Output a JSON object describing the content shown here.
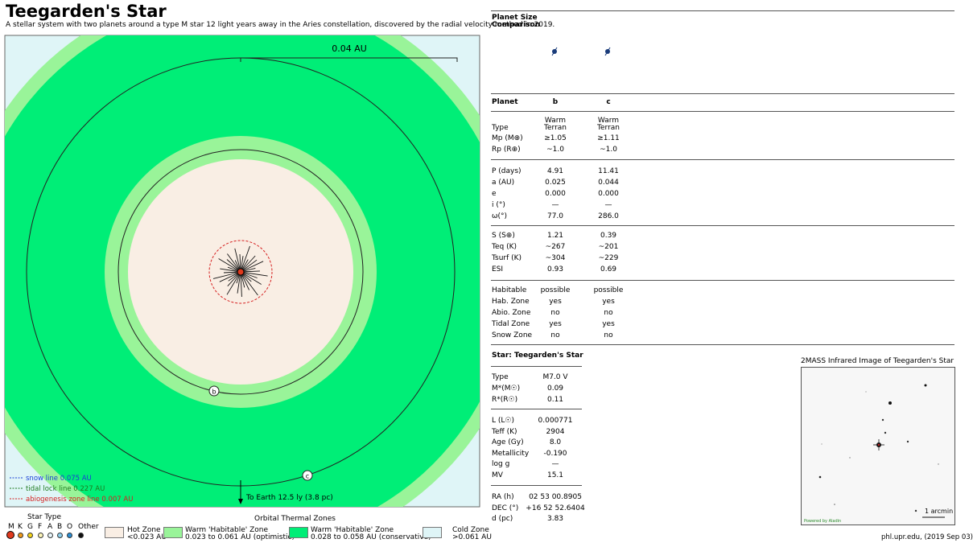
{
  "header": {
    "title": "Teegarden's Star",
    "subtitle": "A stellar system with two planets around a type M star 12 light years away in the Aries constellation, discovered by the radial velocity method in 2019."
  },
  "diagram": {
    "scale_label": "0.04 AU",
    "earth_direction": "To Earth 12.5 ly (3.8 pc)",
    "planet_labels": [
      "b",
      "c"
    ],
    "lines": [
      {
        "label": "snow line 0.075 AU",
        "color": "#1a3fd6"
      },
      {
        "label": "tidal lock line 0.227 AU",
        "color": "#1f7a1f"
      },
      {
        "label": "abiogenesis zone line 0.007 AU",
        "color": "#d62020"
      }
    ],
    "zone_colors": {
      "cold": "#dff5f7",
      "optimistic": "#99f499",
      "conservative": "#00ee77",
      "hot": "#f9eee4"
    }
  },
  "star_type_legend": {
    "title": "Star Type",
    "types": [
      "M",
      "K",
      "G",
      "F",
      "A",
      "B",
      "O",
      "Other"
    ],
    "colors": [
      "#e03a1e",
      "#f09a1a",
      "#f5d51a",
      "#fbf4b8",
      "#e9f6fb",
      "#8fd1ee",
      "#2a8fd6",
      "#111111"
    ]
  },
  "zones_legend": {
    "title": "Orbital Thermal Zones",
    "items": [
      {
        "name": "Hot Zone",
        "range": "<0.023 AU",
        "color": "#f9eee4"
      },
      {
        "name": "Warm 'Habitable' Zone",
        "range": "0.023 to 0.061 AU (optimistic)",
        "color": "#99f499"
      },
      {
        "name": "Warm 'Habitable' Zone",
        "range": "0.028 to 0.058 AU (conservative)",
        "color": "#00ee77"
      },
      {
        "name": "Cold Zone",
        "range": ">0.061 AU",
        "color": "#dff5f7"
      }
    ]
  },
  "comparison": {
    "title_line1": "Planet Size",
    "title_line2": "Comparison"
  },
  "planet_table": {
    "header": {
      "label": "Planet",
      "b": "b",
      "c": "c"
    },
    "type": {
      "label": "Type",
      "b_line1": "Warm",
      "b_line2": "Terran",
      "c_line1": "Warm",
      "c_line2": "Terran"
    },
    "rows_mass": [
      {
        "label": "Mp (M⊕)",
        "b": "≥1.05",
        "c": "≥1.11"
      },
      {
        "label": "Rp (R⊕)",
        "b": "~1.0",
        "c": "~1.0"
      }
    ],
    "rows_orbit": [
      {
        "label": "P (days)",
        "b": "4.91",
        "c": "11.41"
      },
      {
        "label": "a (AU)",
        "b": "0.025",
        "c": "0.044"
      },
      {
        "label": "e",
        "b": "0.000",
        "c": "0.000"
      },
      {
        "label": "i (°)",
        "b": "—",
        "c": "—"
      },
      {
        "label": "ω(°)",
        "b": "77.0",
        "c": "286.0"
      }
    ],
    "rows_climate": [
      {
        "label": "S (S⊕)",
        "b": "1.21",
        "c": "0.39"
      },
      {
        "label": "Teq (K)",
        "b": "~267",
        "c": "~201"
      },
      {
        "label": "Tsurf (K)",
        "b": "~304",
        "c": "~229"
      },
      {
        "label": "ESI",
        "b": "0.93",
        "c": "0.69"
      }
    ],
    "rows_habit": [
      {
        "label": "Habitable",
        "b": "possible",
        "c": "possible"
      },
      {
        "label": "Hab. Zone",
        "b": "yes",
        "c": "yes"
      },
      {
        "label": "Abio. Zone",
        "b": "no",
        "c": "no"
      },
      {
        "label": "Tidal Zone",
        "b": "yes",
        "c": "yes"
      },
      {
        "label": "Snow Zone",
        "b": "no",
        "c": "no"
      }
    ]
  },
  "star_table": {
    "title": "Star: Teegarden's Star",
    "rows_basic": [
      {
        "label": "Type",
        "value": "M7.0 V"
      },
      {
        "label": "M*(M☉)",
        "value": "0.09"
      },
      {
        "label": "R*(R☉)",
        "value": "0.11"
      }
    ],
    "rows_phys": [
      {
        "label": "L (L☉)",
        "value": "0.000771"
      },
      {
        "label": "Teff (K)",
        "value": "2904"
      },
      {
        "label": "Age (Gy)",
        "value": "8.0"
      },
      {
        "label": "Metallicity",
        "value": "-0.190"
      },
      {
        "label": "log g",
        "value": "—"
      },
      {
        "label": "MV",
        "value": "15.1"
      }
    ],
    "rows_pos": [
      {
        "label": "RA (h)",
        "value": "02 53 00.8905"
      },
      {
        "label": "DEC (°)",
        "value": "+16 52 52.6404"
      },
      {
        "label": "d (pc)",
        "value": "3.83"
      }
    ]
  },
  "infrared": {
    "title": "2MASS Infrared Image of Teegarden's Star",
    "scale": "1 arcmin",
    "credit": "Powered by Aladin"
  },
  "footer": {
    "credit": "phl.upr.edu, (2019 Sep 03)"
  }
}
